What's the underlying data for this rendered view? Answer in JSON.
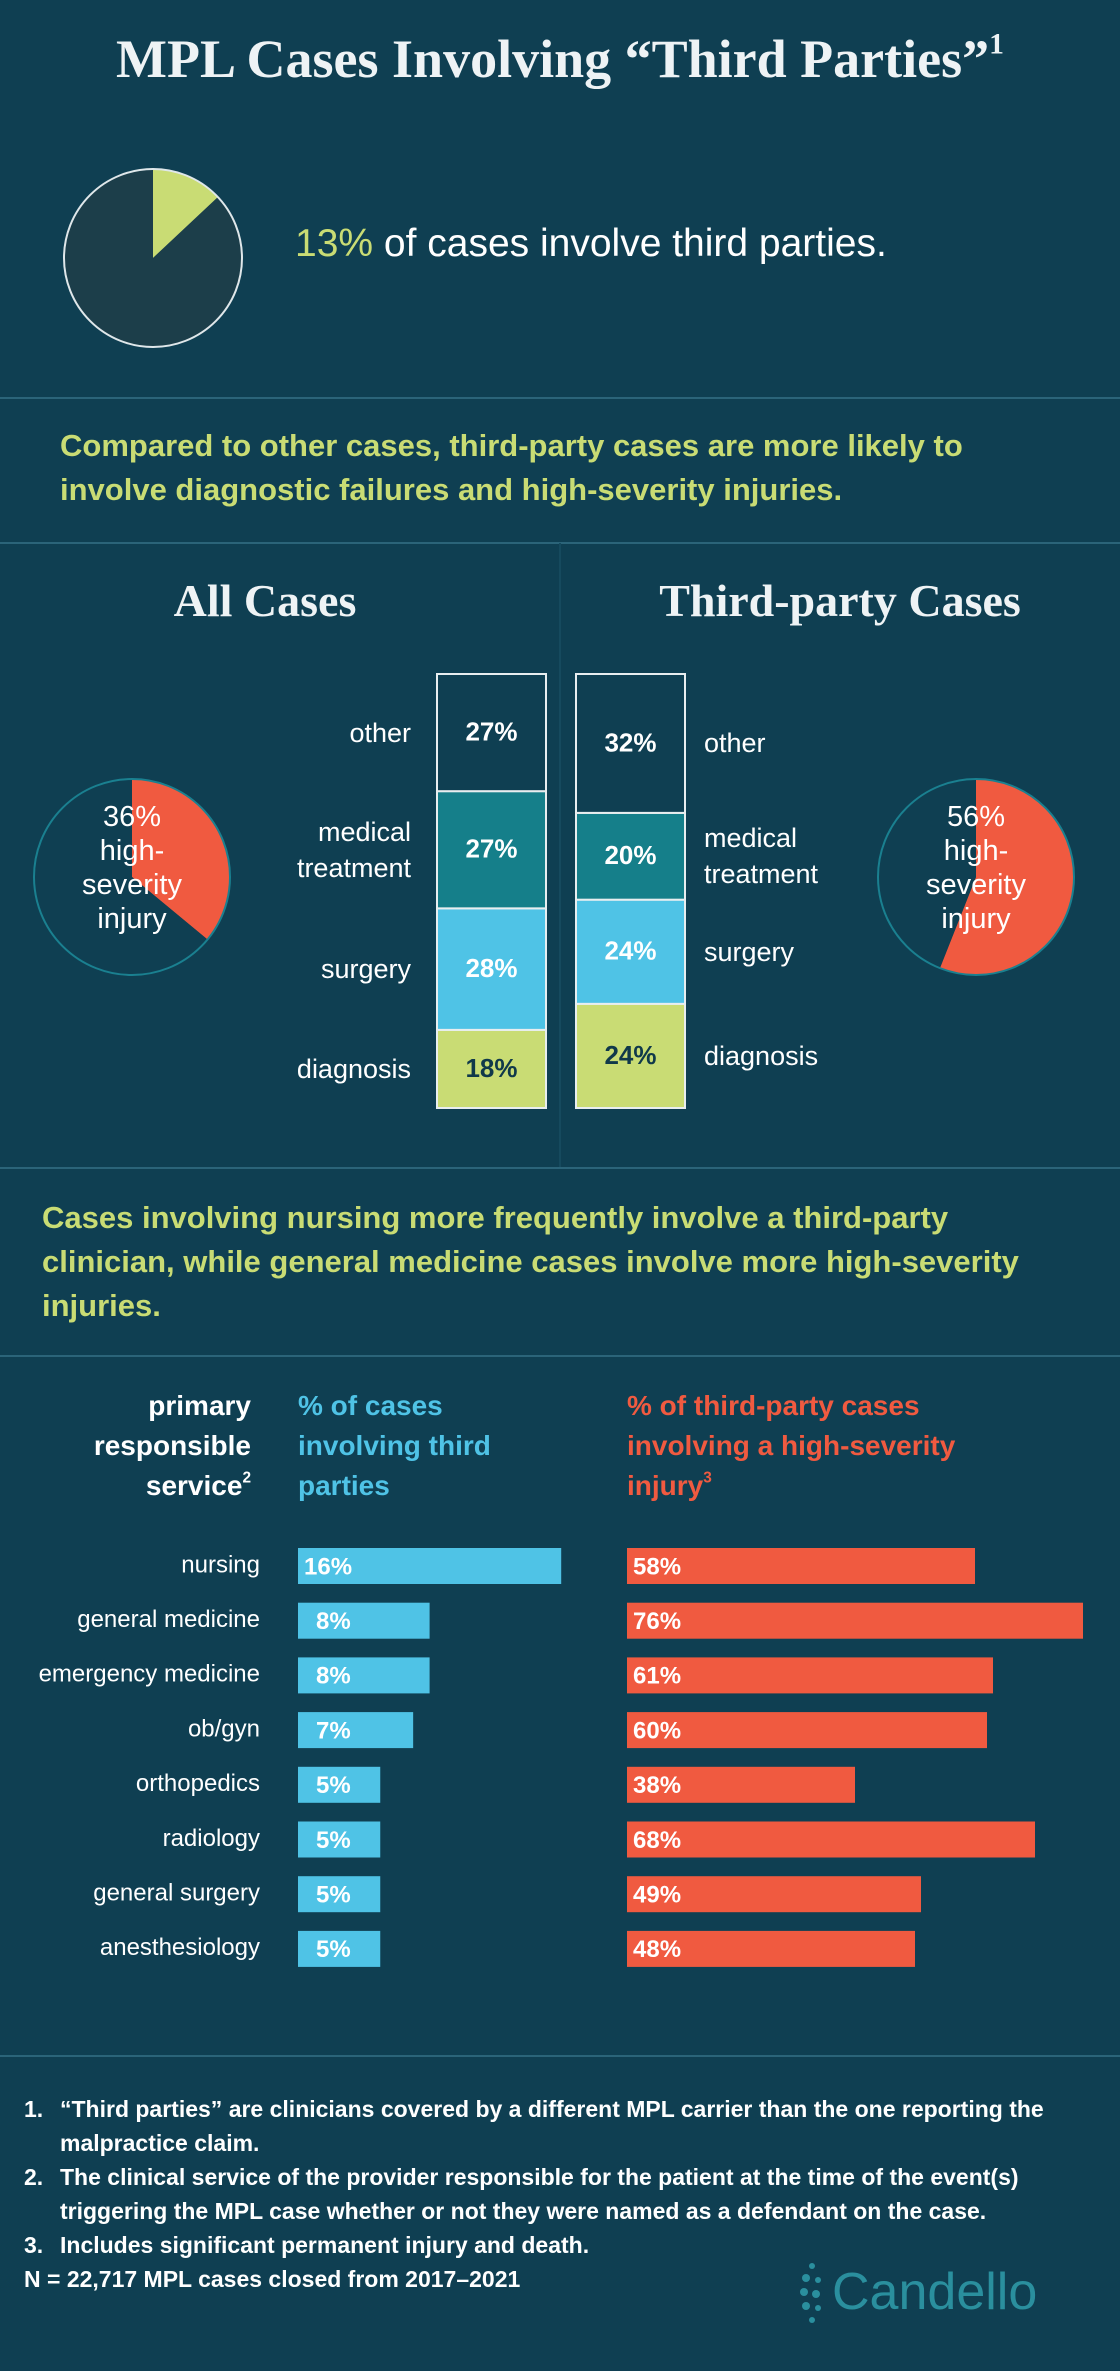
{
  "title": "MPL Cases Involving “Third Parties”",
  "title_note": "1",
  "findings": [
    "Compared to other cases, third-party cases are more likely to involve diagnostic failures and high-severity injuries.",
    "Cases involving nursing more frequently involve a third-party clinician, while general medicine cases involve more high-severity injuries."
  ],
  "chart_data": [
    {
      "type": "pie",
      "values": [
        13,
        87
      ],
      "value_labels": [
        "13%",
        null
      ],
      "colors": [
        "#c9dc74",
        "#1c3e4a"
      ],
      "caption": "of cases involve third parties."
    },
    {
      "type": "pie",
      "values": [
        36,
        64
      ],
      "value_labels": [
        "36%",
        null
      ],
      "colors": [
        "#f05a40",
        "#0f3f52"
      ],
      "label": "high-severity injury"
    },
    {
      "type": "pie",
      "values": [
        56,
        44
      ],
      "value_labels": [
        "56%",
        null
      ],
      "colors": [
        "#f05a40",
        "#0f3f52"
      ],
      "label": "high-severity injury"
    },
    {
      "type": "stacked_bar",
      "categories": [
        "diagnosis",
        "surgery",
        "medical treatment",
        "other"
      ],
      "colors": [
        "#c9dc74",
        "#4fc3e6",
        "#157f8a",
        "#0f3f52"
      ],
      "series": [
        {
          "name": "All Cases",
          "values": [
            18,
            28,
            27,
            27
          ],
          "value_labels": [
            "18%",
            "28%",
            "27%",
            "27%"
          ]
        },
        {
          "name": "Third-party Cases",
          "values": [
            24,
            24,
            20,
            32
          ],
          "value_labels": [
            "24%",
            "24%",
            "20%",
            "32%"
          ]
        }
      ]
    },
    {
      "type": "hbar",
      "ylabel": "primary responsible service",
      "ylabel_note": "2",
      "categories": [
        "nursing",
        "general medicine",
        "emergency medicine",
        "ob/gyn",
        "orthopedics",
        "radiology",
        "general surgery",
        "anesthesiology"
      ],
      "series": [
        {
          "name": "% of cases involving third parties",
          "color": "#4fc3e6",
          "values": [
            16,
            8,
            8,
            7,
            5,
            5,
            5,
            5
          ],
          "value_labels": [
            "16%",
            "8%",
            "8%",
            "7%",
            "5%",
            "5%",
            "5%",
            "5%"
          ]
        },
        {
          "name": "% of third-party cases involving a high-severity injury",
          "note": "3",
          "color": "#f05a40",
          "values": [
            58,
            76,
            61,
            60,
            38,
            68,
            49,
            48
          ],
          "value_labels": [
            "58%",
            "76%",
            "61%",
            "60%",
            "38%",
            "68%",
            "49%",
            "48%"
          ]
        }
      ]
    }
  ],
  "footnotes": [
    {
      "number": "1.",
      "text": "“Third parties” are clinicians covered by a different MPL carrier than the one reporting the malpractice claim."
    },
    {
      "number": "2.",
      "text": "The clinical service of the provider responsible for the patient at the time of the event(s) triggering the MPL case whether or not they were named as a defendant on the case."
    },
    {
      "number": "3.",
      "text": "Includes significant permanent injury and death."
    }
  ],
  "sample": "N = 22,717 MPL cases closed from 2017–2021",
  "logo": "Candello"
}
